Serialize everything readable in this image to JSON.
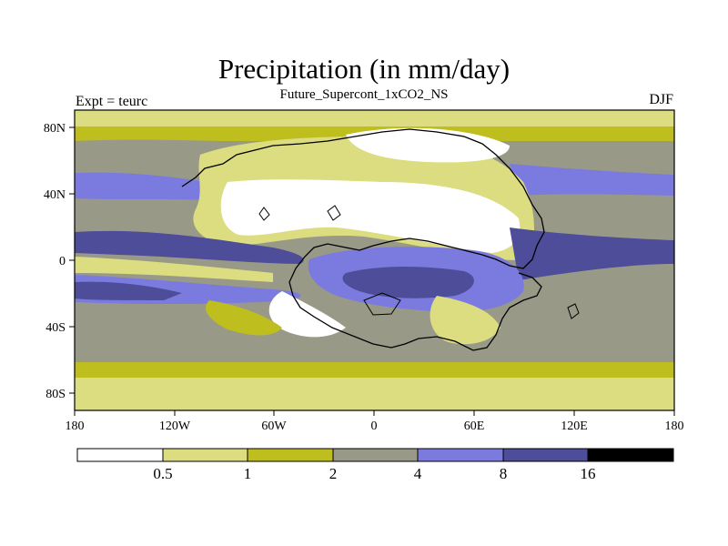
{
  "header": {
    "title": "Precipitation (in mm/day)",
    "subtitle": "Future_Supercont_1xCO2_NS",
    "left_label": "Expt = teurc",
    "right_label": "DJF"
  },
  "map": {
    "x_ticks": [
      "180",
      "120W",
      "60W",
      "0",
      "60E",
      "120E",
      "180"
    ],
    "y_ticks": [
      "80N",
      "40N",
      "0",
      "40S",
      "80S"
    ]
  },
  "colorbar": {
    "labels": [
      "0.5",
      "1",
      "2",
      "4",
      "8",
      "16"
    ],
    "colors": [
      "#ffffff",
      "#dcdc80",
      "#bebe1e",
      "#999988",
      "#7b7bdf",
      "#4d4d99",
      "#000000"
    ]
  },
  "chart_data": {
    "type": "heatmap",
    "title": "Precipitation (in mm/day)",
    "subtitle": "Future_Supercont_1xCO2_NS",
    "xlabel": "",
    "ylabel": "",
    "x_range": [
      -180,
      180
    ],
    "y_range": [
      -90,
      90
    ],
    "x_tick_labels": [
      "180",
      "120W",
      "60W",
      "0",
      "60E",
      "120E",
      "180"
    ],
    "y_tick_labels": [
      "80N",
      "40N",
      "0",
      "40S",
      "80S"
    ],
    "levels": [
      0.5,
      1,
      2,
      4,
      8,
      16
    ],
    "level_colors": [
      "#ffffff",
      "#dcdc80",
      "#bebe1e",
      "#999988",
      "#7b7bdf",
      "#4d4d99",
      "#000000"
    ],
    "season": "DJF"
  }
}
